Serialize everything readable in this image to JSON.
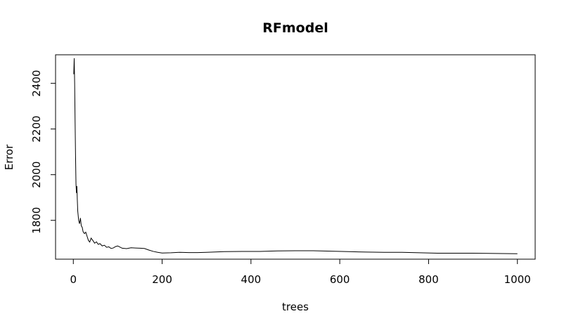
{
  "chart_data": {
    "type": "line",
    "title": "RFmodel",
    "xlabel": "trees",
    "ylabel": "Error",
    "xlim": [
      -40,
      1040
    ],
    "ylim": [
      1630,
      2525
    ],
    "x_ticks": [
      0,
      200,
      400,
      600,
      800,
      1000
    ],
    "y_ticks": [
      1800,
      2000,
      2200,
      2400
    ],
    "grid": false,
    "series": [
      {
        "color": "#000000",
        "points": [
          [
            1,
            2440
          ],
          [
            2,
            2510
          ],
          [
            3,
            2400
          ],
          [
            4,
            2230
          ],
          [
            5,
            2080
          ],
          [
            6,
            1960
          ],
          [
            7,
            1920
          ],
          [
            8,
            1950
          ],
          [
            9,
            1890
          ],
          [
            10,
            1840
          ],
          [
            12,
            1800
          ],
          [
            14,
            1785
          ],
          [
            16,
            1810
          ],
          [
            18,
            1775
          ],
          [
            20,
            1770
          ],
          [
            22,
            1750
          ],
          [
            25,
            1742
          ],
          [
            28,
            1748
          ],
          [
            31,
            1730
          ],
          [
            34,
            1712
          ],
          [
            37,
            1705
          ],
          [
            40,
            1722
          ],
          [
            44,
            1712
          ],
          [
            48,
            1700
          ],
          [
            52,
            1706
          ],
          [
            56,
            1695
          ],
          [
            60,
            1698
          ],
          [
            65,
            1688
          ],
          [
            70,
            1691
          ],
          [
            75,
            1682
          ],
          [
            80,
            1684
          ],
          [
            85,
            1677
          ],
          [
            90,
            1679
          ],
          [
            95,
            1685
          ],
          [
            100,
            1688
          ],
          [
            110,
            1678
          ],
          [
            120,
            1676
          ],
          [
            130,
            1680
          ],
          [
            140,
            1679
          ],
          [
            150,
            1678
          ],
          [
            160,
            1677
          ],
          [
            170,
            1670
          ],
          [
            180,
            1664
          ],
          [
            190,
            1660
          ],
          [
            200,
            1657
          ],
          [
            220,
            1658
          ],
          [
            240,
            1660
          ],
          [
            260,
            1659
          ],
          [
            280,
            1659
          ],
          [
            300,
            1660
          ],
          [
            340,
            1663
          ],
          [
            380,
            1664
          ],
          [
            420,
            1664
          ],
          [
            460,
            1666
          ],
          [
            500,
            1667
          ],
          [
            540,
            1667
          ],
          [
            580,
            1665
          ],
          [
            620,
            1663
          ],
          [
            660,
            1661
          ],
          [
            700,
            1660
          ],
          [
            740,
            1660
          ],
          [
            780,
            1658
          ],
          [
            820,
            1656
          ],
          [
            860,
            1656
          ],
          [
            900,
            1656
          ],
          [
            950,
            1655
          ],
          [
            1000,
            1654
          ]
        ]
      }
    ]
  }
}
